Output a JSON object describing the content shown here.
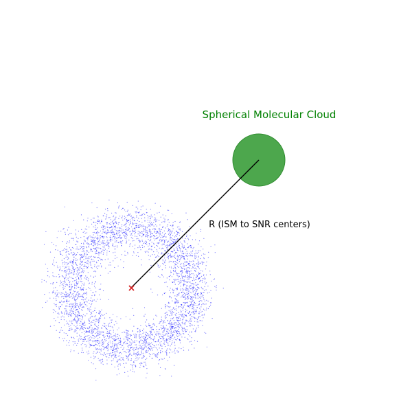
{
  "diagram": {
    "cloud": {
      "label": "Spherical Molecular Cloud",
      "label_color": "#008000",
      "fill_color": "#3a9d3a",
      "edge_color": "#2e8b2e"
    },
    "distance": {
      "label": "R (ISM to SNR centers)",
      "line_color": "#000000"
    },
    "snr_center": {
      "marker": "x-mark-icon",
      "color": "#d62728"
    },
    "snr_shell": {
      "point_color": "#0000ff",
      "point_count": 4000
    }
  }
}
